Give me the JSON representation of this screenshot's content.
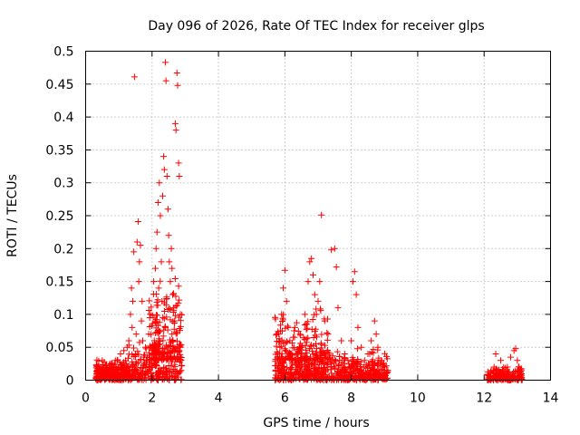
{
  "chart_data": {
    "type": "scatter",
    "title": "Day 096 of 2026, Rate Of TEC Index for receiver glps",
    "xlabel": "GPS time / hours",
    "ylabel": "ROTI / TECUs",
    "xlim": [
      0,
      14
    ],
    "ylim": [
      0,
      0.5
    ],
    "xticks": [
      0,
      2,
      4,
      6,
      8,
      10,
      12,
      14
    ],
    "xtick_labels": [
      "0",
      "2",
      "4",
      "6",
      "8",
      "10",
      "12",
      "14"
    ],
    "yticks": [
      0,
      0.05,
      0.1,
      0.15,
      0.2,
      0.25,
      0.3,
      0.35,
      0.4,
      0.45,
      0.5
    ],
    "ytick_labels": [
      "0",
      "0.05",
      "0.1",
      "0.15",
      "0.2",
      "0.25",
      "0.3",
      "0.35",
      "0.4",
      "0.45",
      "0.5"
    ],
    "grid": true,
    "marker": "+",
    "marker_color": "#ff0000",
    "series": [
      {
        "name": "ROTI",
        "points": [
          [
            0.35,
            0.01
          ],
          [
            0.4,
            0.02
          ],
          [
            0.45,
            0.015
          ],
          [
            0.5,
            0.03
          ],
          [
            0.55,
            0.012
          ],
          [
            0.6,
            0.022
          ],
          [
            0.65,
            0.008
          ],
          [
            0.7,
            0.018
          ],
          [
            0.75,
            0.025
          ],
          [
            0.8,
            0.01
          ],
          [
            0.85,
            0.02
          ],
          [
            0.9,
            0.015
          ],
          [
            0.95,
            0.03
          ],
          [
            1.0,
            0.012
          ],
          [
            1.05,
            0.04
          ],
          [
            1.1,
            0.02
          ],
          [
            1.15,
            0.045
          ],
          [
            1.2,
            0.03
          ],
          [
            1.25,
            0.05
          ],
          [
            1.3,
            0.06
          ],
          [
            1.35,
            0.1
          ],
          [
            1.38,
            0.14
          ],
          [
            1.4,
            0.08
          ],
          [
            1.42,
            0.12
          ],
          [
            1.45,
            0.195
          ],
          [
            1.47,
            0.461
          ],
          [
            1.5,
            0.04
          ],
          [
            1.52,
            0.07
          ],
          [
            1.55,
            0.21
          ],
          [
            1.58,
            0.241
          ],
          [
            1.6,
            0.15
          ],
          [
            1.62,
            0.18
          ],
          [
            1.65,
            0.205
          ],
          [
            1.68,
            0.09
          ],
          [
            1.7,
            0.12
          ],
          [
            1.72,
            0.06
          ],
          [
            1.75,
            0.035
          ],
          [
            1.8,
            0.05
          ],
          [
            1.85,
            0.03
          ],
          [
            1.9,
            0.07
          ],
          [
            1.95,
            0.1
          ],
          [
            2.0,
            0.05
          ],
          [
            2.05,
            0.15
          ],
          [
            2.1,
            0.17
          ],
          [
            2.12,
            0.2
          ],
          [
            2.15,
            0.225
          ],
          [
            2.18,
            0.27
          ],
          [
            2.2,
            0.14
          ],
          [
            2.22,
            0.3
          ],
          [
            2.25,
            0.25
          ],
          [
            2.28,
            0.18
          ],
          [
            2.3,
            0.12
          ],
          [
            2.32,
            0.28
          ],
          [
            2.35,
            0.34
          ],
          [
            2.37,
            0.32
          ],
          [
            2.4,
            0.483
          ],
          [
            2.42,
            0.455
          ],
          [
            2.45,
            0.31
          ],
          [
            2.48,
            0.26
          ],
          [
            2.5,
            0.22
          ],
          [
            2.52,
            0.18
          ],
          [
            2.55,
            0.15
          ],
          [
            2.58,
            0.2
          ],
          [
            2.6,
            0.17
          ],
          [
            2.62,
            0.13
          ],
          [
            2.65,
            0.11
          ],
          [
            2.68,
            0.09
          ],
          [
            2.7,
            0.39
          ],
          [
            2.72,
            0.38
          ],
          [
            2.75,
            0.467
          ],
          [
            2.77,
            0.448
          ],
          [
            2.8,
            0.33
          ],
          [
            2.82,
            0.31
          ],
          [
            2.85,
            0.1
          ],
          [
            2.85,
            0.05
          ],
          [
            2.2,
            0.06
          ],
          [
            2.4,
            0.08
          ],
          [
            2.6,
            0.07
          ],
          [
            1.9,
            0.02
          ],
          [
            2.1,
            0.03
          ],
          [
            5.8,
            0.01
          ],
          [
            5.85,
            0.05
          ],
          [
            5.9,
            0.1
          ],
          [
            5.95,
            0.14
          ],
          [
            6.0,
            0.167
          ],
          [
            6.05,
            0.12
          ],
          [
            6.1,
            0.08
          ],
          [
            6.15,
            0.06
          ],
          [
            6.2,
            0.04
          ],
          [
            6.3,
            0.03
          ],
          [
            6.4,
            0.02
          ],
          [
            6.5,
            0.05
          ],
          [
            6.6,
            0.1
          ],
          [
            6.7,
            0.15
          ],
          [
            6.75,
            0.18
          ],
          [
            6.8,
            0.185
          ],
          [
            6.85,
            0.16
          ],
          [
            6.9,
            0.13
          ],
          [
            6.95,
            0.1
          ],
          [
            7.0,
            0.12
          ],
          [
            7.05,
            0.15
          ],
          [
            7.1,
            0.251
          ],
          [
            7.2,
            0.09
          ],
          [
            7.3,
            0.07
          ],
          [
            7.4,
            0.198
          ],
          [
            7.5,
            0.2
          ],
          [
            7.55,
            0.172
          ],
          [
            7.6,
            0.11
          ],
          [
            7.7,
            0.06
          ],
          [
            7.8,
            0.04
          ],
          [
            7.9,
            0.03
          ],
          [
            8.0,
            0.06
          ],
          [
            8.05,
            0.15
          ],
          [
            8.1,
            0.165
          ],
          [
            8.15,
            0.13
          ],
          [
            8.2,
            0.08
          ],
          [
            8.3,
            0.05
          ],
          [
            8.4,
            0.03
          ],
          [
            8.5,
            0.04
          ],
          [
            8.6,
            0.06
          ],
          [
            8.7,
            0.09
          ],
          [
            8.75,
            0.07
          ],
          [
            8.8,
            0.05
          ],
          [
            8.9,
            0.03
          ],
          [
            9.0,
            0.02
          ],
          [
            9.05,
            0.01
          ],
          [
            9.1,
            0.015
          ],
          [
            6.3,
            0.08
          ],
          [
            6.5,
            0.02
          ],
          [
            7.8,
            0.02
          ],
          [
            12.2,
            0.01
          ],
          [
            12.3,
            0.02
          ],
          [
            12.35,
            0.04
          ],
          [
            12.4,
            0.015
          ],
          [
            12.5,
            0.03
          ],
          [
            12.6,
            0.012
          ],
          [
            12.7,
            0.02
          ],
          [
            12.8,
            0.035
          ],
          [
            12.9,
            0.045
          ],
          [
            12.95,
            0.048
          ],
          [
            13.0,
            0.03
          ],
          [
            13.05,
            0.02
          ],
          [
            13.1,
            0.012
          ]
        ],
        "clusters": [
          {
            "x_range": [
              0.3,
              1.3
            ],
            "y_range": [
              0.0,
              0.035
            ],
            "n": 260,
            "seed": 11
          },
          {
            "x_range": [
              1.3,
              2.9
            ],
            "y_range": [
              0.0,
              0.06
            ],
            "n": 220,
            "seed": 12
          },
          {
            "x_range": [
              1.9,
              2.9
            ],
            "y_range": [
              0.03,
              0.16
            ],
            "n": 200,
            "seed": 13
          },
          {
            "x_range": [
              5.7,
              9.1
            ],
            "y_range": [
              0.0,
              0.05
            ],
            "n": 600,
            "seed": 14
          },
          {
            "x_range": [
              5.7,
              7.3
            ],
            "y_range": [
              0.03,
              0.12
            ],
            "n": 160,
            "seed": 15
          },
          {
            "x_range": [
              12.1,
              13.15
            ],
            "y_range": [
              0.0,
              0.025
            ],
            "n": 180,
            "seed": 16
          }
        ]
      }
    ]
  }
}
